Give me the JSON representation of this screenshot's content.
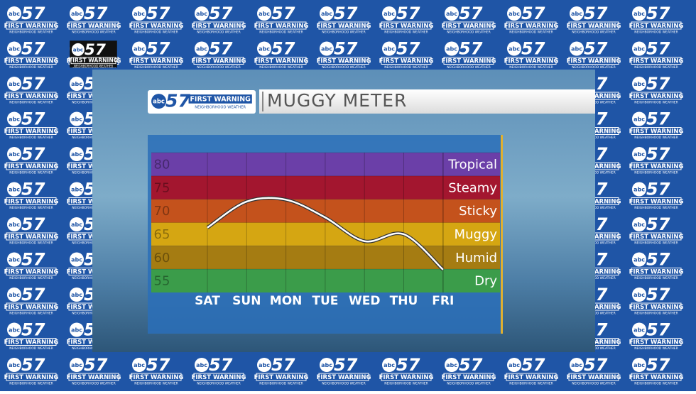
{
  "branding": {
    "network": "abc",
    "channel": "57",
    "tagline": "FIRST WARNING",
    "subtitle": "NEIGHBORHOOD WEATHER"
  },
  "chart_data": {
    "type": "line",
    "title": "MUGGY METER",
    "categories": [
      "SAT",
      "SUN",
      "MON",
      "TUE",
      "WED",
      "THU",
      "FRI"
    ],
    "values": [
      66.4,
      72,
      72.4,
      68.6,
      63.5,
      65,
      57.4
    ],
    "color": "#ffffff",
    "ylim": [
      52.5,
      82.5
    ],
    "yticks": [
      55,
      60,
      65,
      70,
      75,
      80
    ],
    "bands": [
      {
        "label": "Tropical",
        "from": 77.5,
        "to": 82.5,
        "color": "#6b3fa8"
      },
      {
        "label": "Steamy",
        "from": 72.5,
        "to": 77.5,
        "color": "#a3162f"
      },
      {
        "label": "Sticky",
        "from": 67.5,
        "to": 72.5,
        "color": "#c4521c"
      },
      {
        "label": "Muggy",
        "from": 62.5,
        "to": 67.5,
        "color": "#d5a612"
      },
      {
        "label": "Humid",
        "from": 57.5,
        "to": 62.5,
        "color": "#a57c12"
      },
      {
        "label": "Dry",
        "from": 52.5,
        "to": 57.5,
        "color": "#3b9c4a"
      }
    ]
  }
}
